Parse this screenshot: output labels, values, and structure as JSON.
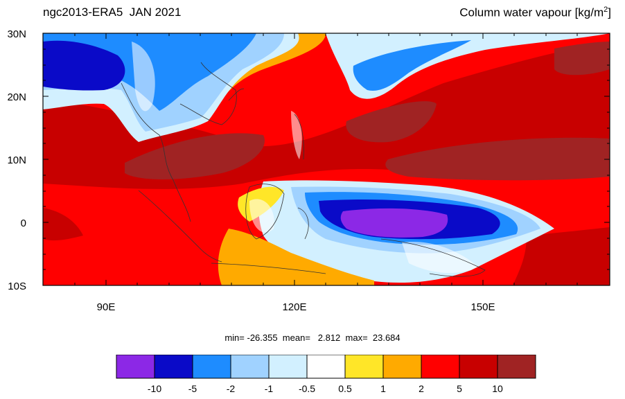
{
  "header": {
    "left_title": "ngc2013-ERA5  JAN 2021",
    "right_title_main": "Column water vapour [kg/m",
    "right_title_sup": "2",
    "right_title_end": "]"
  },
  "map": {
    "lat_labels": [
      "30N",
      "20N",
      "10N",
      "0",
      "10S"
    ],
    "lon_labels": [
      "90E",
      "120E",
      "150E"
    ],
    "lat_range": [
      -10,
      30
    ],
    "lon_range": [
      80,
      170
    ]
  },
  "stats": {
    "text": "min= -26.355  mean=   2.812  max=  23.684"
  },
  "colorbar": {
    "levels": [
      "-10",
      "-5",
      "-2",
      "-1",
      "-0.5",
      "0.5",
      "1",
      "2",
      "5",
      "10"
    ],
    "colors": [
      "#8c28e6",
      "#0a0ac8",
      "#1e8cff",
      "#a0d2ff",
      "#d2f0ff",
      "#ffffff",
      "#ffe628",
      "#ffaa00",
      "#ff0000",
      "#c80000",
      "#a02323"
    ]
  }
}
